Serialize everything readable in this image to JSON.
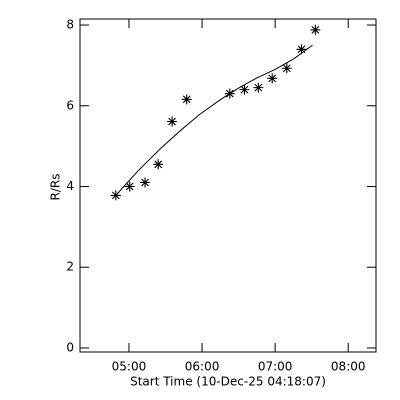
{
  "chart_data": {
    "type": "scatter",
    "xlabel": "Start Time (10-Dec-25 04:18:07)",
    "ylabel": "R/Rs",
    "xlim": [
      4.33,
      8.38
    ],
    "ylim": [
      -0.1,
      8.15
    ],
    "xticks": [
      {
        "value": 5,
        "label": "05:00"
      },
      {
        "value": 6,
        "label": "06:00"
      },
      {
        "value": 7,
        "label": "07:00"
      },
      {
        "value": 8,
        "label": "08:00"
      }
    ],
    "yticks": [
      0,
      2,
      4,
      6,
      8
    ],
    "series": [
      {
        "type": "scatter",
        "color": "#000000",
        "x": [
          4.82,
          5.01,
          5.22,
          5.4,
          5.59,
          5.79,
          6.38,
          6.58,
          6.77,
          6.96,
          7.16,
          7.36,
          7.55
        ],
        "values": [
          3.78,
          4.0,
          4.1,
          4.55,
          5.61,
          6.16,
          6.3,
          6.4,
          6.45,
          6.68,
          6.93,
          7.4,
          7.88
        ]
      },
      {
        "type": "line",
        "color": "#000000",
        "x": [
          4.82,
          5.12,
          5.42,
          5.7,
          5.97,
          6.25,
          6.52,
          6.76,
          7.0,
          7.26,
          7.51
        ],
        "values": [
          3.78,
          4.38,
          4.92,
          5.38,
          5.79,
          6.15,
          6.46,
          6.7,
          6.9,
          7.17,
          7.5
        ]
      }
    ]
  }
}
